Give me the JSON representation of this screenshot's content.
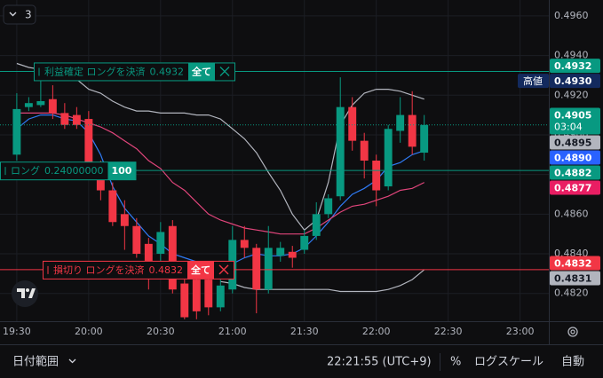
{
  "toolbar": {
    "indicator_count": 3
  },
  "chart_data": {
    "type": "candlestick",
    "x": [
      "19:30",
      "19:35",
      "19:40",
      "19:45",
      "19:50",
      "19:55",
      "20:00",
      "20:05",
      "20:10",
      "20:15",
      "20:20",
      "20:25",
      "20:30",
      "20:35",
      "20:40",
      "20:45",
      "20:50",
      "20:55",
      "21:00",
      "21:05",
      "21:10",
      "21:15",
      "21:20",
      "21:25",
      "21:30",
      "21:35",
      "21:40",
      "21:45",
      "21:50",
      "21:55",
      "22:00",
      "22:05",
      "22:10",
      "22:15",
      "22:20"
    ],
    "open": [
      0.489,
      0.4914,
      0.4915,
      0.4918,
      0.4911,
      0.491,
      0.4908,
      0.4883,
      0.4872,
      0.486,
      0.4854,
      0.4845,
      0.484,
      0.4854,
      0.4825,
      0.4827,
      0.4827,
      0.4813,
      0.4822,
      0.4847,
      0.4843,
      0.4822,
      0.4839,
      0.4841,
      0.4842,
      0.4849,
      0.486,
      0.4869,
      0.4914,
      0.4897,
      0.4887,
      0.4874,
      0.4902,
      0.491,
      0.4891
    ],
    "high": [
      0.4921,
      0.4919,
      0.4928,
      0.4925,
      0.4916,
      0.4914,
      0.4912,
      0.4887,
      0.4876,
      0.4867,
      0.4858,
      0.4848,
      0.4856,
      0.4857,
      0.4827,
      0.4833,
      0.483,
      0.4829,
      0.4854,
      0.4854,
      0.4845,
      0.4854,
      0.4846,
      0.4844,
      0.4852,
      0.4866,
      0.487,
      0.4929,
      0.4919,
      0.4901,
      0.489,
      0.4905,
      0.4919,
      0.4922,
      0.491
    ],
    "low": [
      0.4887,
      0.4912,
      0.4914,
      0.4908,
      0.4903,
      0.4903,
      0.4881,
      0.4867,
      0.4854,
      0.4842,
      0.4838,
      0.4822,
      0.4833,
      0.482,
      0.4807,
      0.4807,
      0.4809,
      0.4811,
      0.482,
      0.4838,
      0.481,
      0.482,
      0.4836,
      0.4833,
      0.484,
      0.4847,
      0.4858,
      0.4867,
      0.4892,
      0.4878,
      0.4864,
      0.4872,
      0.4896,
      0.489,
      0.4887
    ],
    "close": [
      0.4913,
      0.4916,
      0.4917,
      0.4911,
      0.4905,
      0.4905,
      0.4883,
      0.4872,
      0.4856,
      0.4854,
      0.484,
      0.4829,
      0.4851,
      0.4822,
      0.4808,
      0.4811,
      0.4813,
      0.4824,
      0.4847,
      0.4843,
      0.4822,
      0.4843,
      0.4843,
      0.4838,
      0.4849,
      0.486,
      0.4868,
      0.4914,
      0.4897,
      0.4887,
      0.4872,
      0.4903,
      0.491,
      0.4894,
      0.4905
    ],
    "up_color": "#089981",
    "down_color": "#f23645",
    "lines": [
      {
        "color": "#b2b5be",
        "values": [
          0.4936,
          0.4934,
          0.4933,
          0.4932,
          0.493,
          0.4928,
          0.4923,
          0.4921,
          0.4917,
          0.4914,
          0.4912,
          0.4912,
          0.4911,
          0.4911,
          0.4911,
          0.491,
          0.491,
          0.4908,
          0.4903,
          0.4898,
          0.4891,
          0.4881,
          0.4872,
          0.486,
          0.4852,
          0.4857,
          0.4876,
          0.4905,
          0.4915,
          0.4921,
          0.4923,
          0.4923,
          0.4922,
          0.492,
          0.4918
        ]
      },
      {
        "color": "#b2b5be",
        "values": [
          null,
          null,
          null,
          null,
          null,
          null,
          null,
          null,
          null,
          null,
          null,
          null,
          null,
          null,
          null,
          null,
          null,
          0.4826,
          0.4825,
          0.4823,
          0.4822,
          0.4822,
          0.4822,
          0.4822,
          0.4822,
          0.4822,
          0.4822,
          0.4821,
          0.4821,
          0.4821,
          0.4821,
          0.4822,
          0.4824,
          0.4827,
          0.4832
        ]
      },
      {
        "color": "#2f7bf5",
        "values": [
          0.4903,
          0.4908,
          0.491,
          0.491,
          0.4908,
          0.4907,
          0.4901,
          0.489,
          0.4874,
          0.4863,
          0.4856,
          0.4849,
          0.4845,
          0.484,
          0.4838,
          0.4836,
          0.4834,
          0.4833,
          0.4835,
          0.4838,
          0.484,
          0.4839,
          0.4839,
          0.484,
          0.4843,
          0.4849,
          0.4856,
          0.4864,
          0.487,
          0.4873,
          0.4877,
          0.4884,
          0.4886,
          0.489,
          0.4892
        ]
      },
      {
        "color": "#e0457b",
        "values": [
          0.4911,
          0.4911,
          0.4911,
          0.4911,
          0.491,
          0.4908,
          0.4906,
          0.4904,
          0.4901,
          0.4897,
          0.4893,
          0.4887,
          0.4883,
          0.4876,
          0.4872,
          0.4866,
          0.486,
          0.4857,
          0.4855,
          0.4853,
          0.4852,
          0.4851,
          0.485,
          0.485,
          0.485,
          0.4853,
          0.4857,
          0.4861,
          0.4864,
          0.4865,
          0.4867,
          0.4869,
          0.4872,
          0.4873,
          0.4876
        ]
      }
    ],
    "xlim": [
      "19:23",
      "23:12"
    ],
    "xticks": [
      "19:30",
      "20:00",
      "20:30",
      "21:00",
      "21:30",
      "22:00",
      "22:30",
      "23:00"
    ],
    "ylim": [
      0.4806,
      0.4968
    ],
    "yticks": [
      {
        "value": 0.496,
        "label": "0.4960"
      },
      {
        "value": 0.494,
        "label": "0.4940"
      },
      {
        "value": 0.492,
        "label": "0.4920"
      },
      {
        "value": 0.49,
        "label": "0.4900"
      },
      {
        "value": 0.488,
        "label": "0.4880"
      },
      {
        "value": 0.486,
        "label": "0.4860"
      },
      {
        "value": 0.484,
        "label": "0.4840"
      },
      {
        "value": 0.482,
        "label": "0.4820"
      }
    ],
    "grid": true,
    "orders": [
      {
        "text": "利益確定 ロングを決済",
        "price": 0.4932,
        "button": "全て",
        "closable": true,
        "color": "#089981"
      },
      {
        "text": "ロング",
        "quantity": "0.24000000",
        "price": 0.4882,
        "button": 100,
        "closable": false,
        "color": "#089981"
      },
      {
        "text": "損切り ロングを決済",
        "price": 0.4832,
        "button": "全て",
        "closable": true,
        "color": "#f23645"
      }
    ],
    "price_labels": [
      {
        "value": 0.4932,
        "color": "#089981"
      },
      {
        "value": 0.493,
        "label": "0.4930",
        "tag": "高値",
        "color": "#132a5e"
      },
      {
        "value": 0.4905,
        "countdown": "03:04",
        "color": "#089981"
      },
      {
        "value": 0.4895,
        "color": "#b2b5be"
      },
      {
        "value": 0.489,
        "label": "0.4890",
        "color": "#2962ff"
      },
      {
        "value": 0.4882,
        "color": "#089981"
      },
      {
        "value": 0.4877,
        "color": "#e91e63"
      },
      {
        "value": 0.4832,
        "color": "#f23645"
      },
      {
        "value": 0.4831,
        "color": "#b2b5be"
      }
    ]
  },
  "footer": {
    "date_range": "日付範囲",
    "time": "22:21:55 (UTC+9)",
    "percent": "%",
    "log_scale": "ログスケール",
    "auto": "自動"
  }
}
